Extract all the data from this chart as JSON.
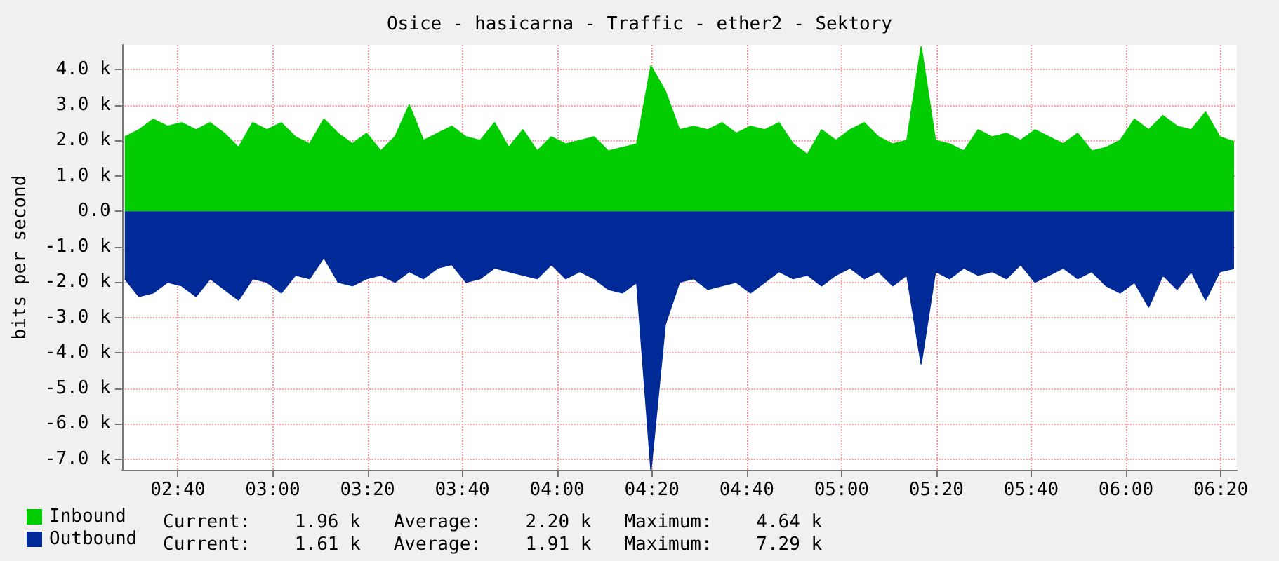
{
  "chart_data": {
    "type": "area",
    "title": "Osice - hasicarna - Traffic - ether2 - Sektory",
    "ylabel": "bits per second",
    "x": [
      2.48,
      2.53,
      2.58,
      2.63,
      2.68,
      2.73,
      2.78,
      2.83,
      2.88,
      2.93,
      2.98,
      3.03,
      3.08,
      3.13,
      3.18,
      3.23,
      3.28,
      3.33,
      3.38,
      3.43,
      3.48,
      3.53,
      3.58,
      3.63,
      3.68,
      3.73,
      3.78,
      3.83,
      3.88,
      3.93,
      3.98,
      4.03,
      4.08,
      4.13,
      4.18,
      4.23,
      4.28,
      4.33,
      4.38,
      4.43,
      4.48,
      4.53,
      4.58,
      4.63,
      4.68,
      4.73,
      4.78,
      4.83,
      4.88,
      4.93,
      4.98,
      5.03,
      5.08,
      5.13,
      5.18,
      5.23,
      5.28,
      5.33,
      5.38,
      5.43,
      5.48,
      5.53,
      5.58,
      5.63,
      5.68,
      5.73,
      5.78,
      5.83,
      5.88,
      5.93,
      5.98,
      6.03,
      6.08,
      6.13,
      6.18,
      6.23,
      6.28,
      6.33,
      6.38
    ],
    "series": [
      {
        "name": "Inbound",
        "color": "#00cc00",
        "values": [
          2100,
          2300,
          2600,
          2400,
          2500,
          2300,
          2500,
          2200,
          1800,
          2500,
          2300,
          2500,
          2100,
          1900,
          2600,
          2200,
          1900,
          2200,
          1700,
          2100,
          3000,
          2000,
          2200,
          2400,
          2100,
          2000,
          2500,
          1800,
          2300,
          1700,
          2100,
          1900,
          2000,
          2100,
          1700,
          1800,
          1900,
          4100,
          3400,
          2300,
          2400,
          2300,
          2500,
          2200,
          2400,
          2300,
          2500,
          1900,
          1600,
          2300,
          2000,
          2300,
          2500,
          2100,
          1900,
          2000,
          4640,
          2000,
          1900,
          1700,
          2300,
          2100,
          2200,
          2000,
          2300,
          2100,
          1900,
          2200,
          1700,
          1800,
          2000,
          2600,
          2300,
          2700,
          2400,
          2300,
          2800,
          2100,
          1960
        ]
      },
      {
        "name": "Outbound",
        "color": "#002a97",
        "values": [
          -1900,
          -2400,
          -2300,
          -2000,
          -2100,
          -2400,
          -1900,
          -2200,
          -2500,
          -1900,
          -2000,
          -2300,
          -1800,
          -1900,
          -1300,
          -2000,
          -2100,
          -1900,
          -1800,
          -2000,
          -1700,
          -1900,
          -1600,
          -1500,
          -2000,
          -1900,
          -1600,
          -1700,
          -1800,
          -1900,
          -1500,
          -1900,
          -1700,
          -1900,
          -2200,
          -2300,
          -2000,
          -7290,
          -3200,
          -2000,
          -1900,
          -2200,
          -2100,
          -2000,
          -2300,
          -2000,
          -1700,
          -1900,
          -1800,
          -2100,
          -1800,
          -1600,
          -1900,
          -1700,
          -2100,
          -1800,
          -4300,
          -1700,
          -1900,
          -1600,
          -1800,
          -1700,
          -1900,
          -1500,
          -2000,
          -1800,
          -1600,
          -1900,
          -1700,
          -2100,
          -2300,
          -2000,
          -2700,
          -1800,
          -2200,
          -1700,
          -2500,
          -1700,
          -1610
        ]
      }
    ],
    "xlim": [
      2.47,
      6.39
    ],
    "xticks": [
      {
        "value": 2.6667,
        "label": "02:40"
      },
      {
        "value": 3,
        "label": "03:00"
      },
      {
        "value": 3.3333,
        "label": "03:20"
      },
      {
        "value": 3.6667,
        "label": "03:40"
      },
      {
        "value": 4,
        "label": "04:00"
      },
      {
        "value": 4.3333,
        "label": "04:20"
      },
      {
        "value": 4.6667,
        "label": "04:40"
      },
      {
        "value": 5,
        "label": "05:00"
      },
      {
        "value": 5.3333,
        "label": "05:20"
      },
      {
        "value": 5.6667,
        "label": "05:40"
      },
      {
        "value": 6,
        "label": "06:00"
      },
      {
        "value": 6.3333,
        "label": "06:20"
      }
    ],
    "ylim": [
      -7300,
      4700
    ],
    "yticks": [
      {
        "value": -7000,
        "label": "-7.0 k"
      },
      {
        "value": -6000,
        "label": "-6.0 k"
      },
      {
        "value": -5000,
        "label": "-5.0 k"
      },
      {
        "value": -4000,
        "label": "-4.0 k"
      },
      {
        "value": -3000,
        "label": "-3.0 k"
      },
      {
        "value": -2000,
        "label": "-2.0 k"
      },
      {
        "value": -1000,
        "label": "-1.0 k"
      },
      {
        "value": 0,
        "label": "0.0"
      },
      {
        "value": 1000,
        "label": "1.0 k"
      },
      {
        "value": 2000,
        "label": "2.0 k"
      },
      {
        "value": 3000,
        "label": "3.0 k"
      },
      {
        "value": 4000,
        "label": "4.0 k"
      }
    ],
    "grid": true,
    "legend": "bottom left",
    "annotations": [
      "Current:    1.96 k   Average:    2.20 k   Maximum:    4.64 k",
      "Current:    1.61 k   Average:    1.91 k   Maximum:    7.29 k"
    ]
  }
}
